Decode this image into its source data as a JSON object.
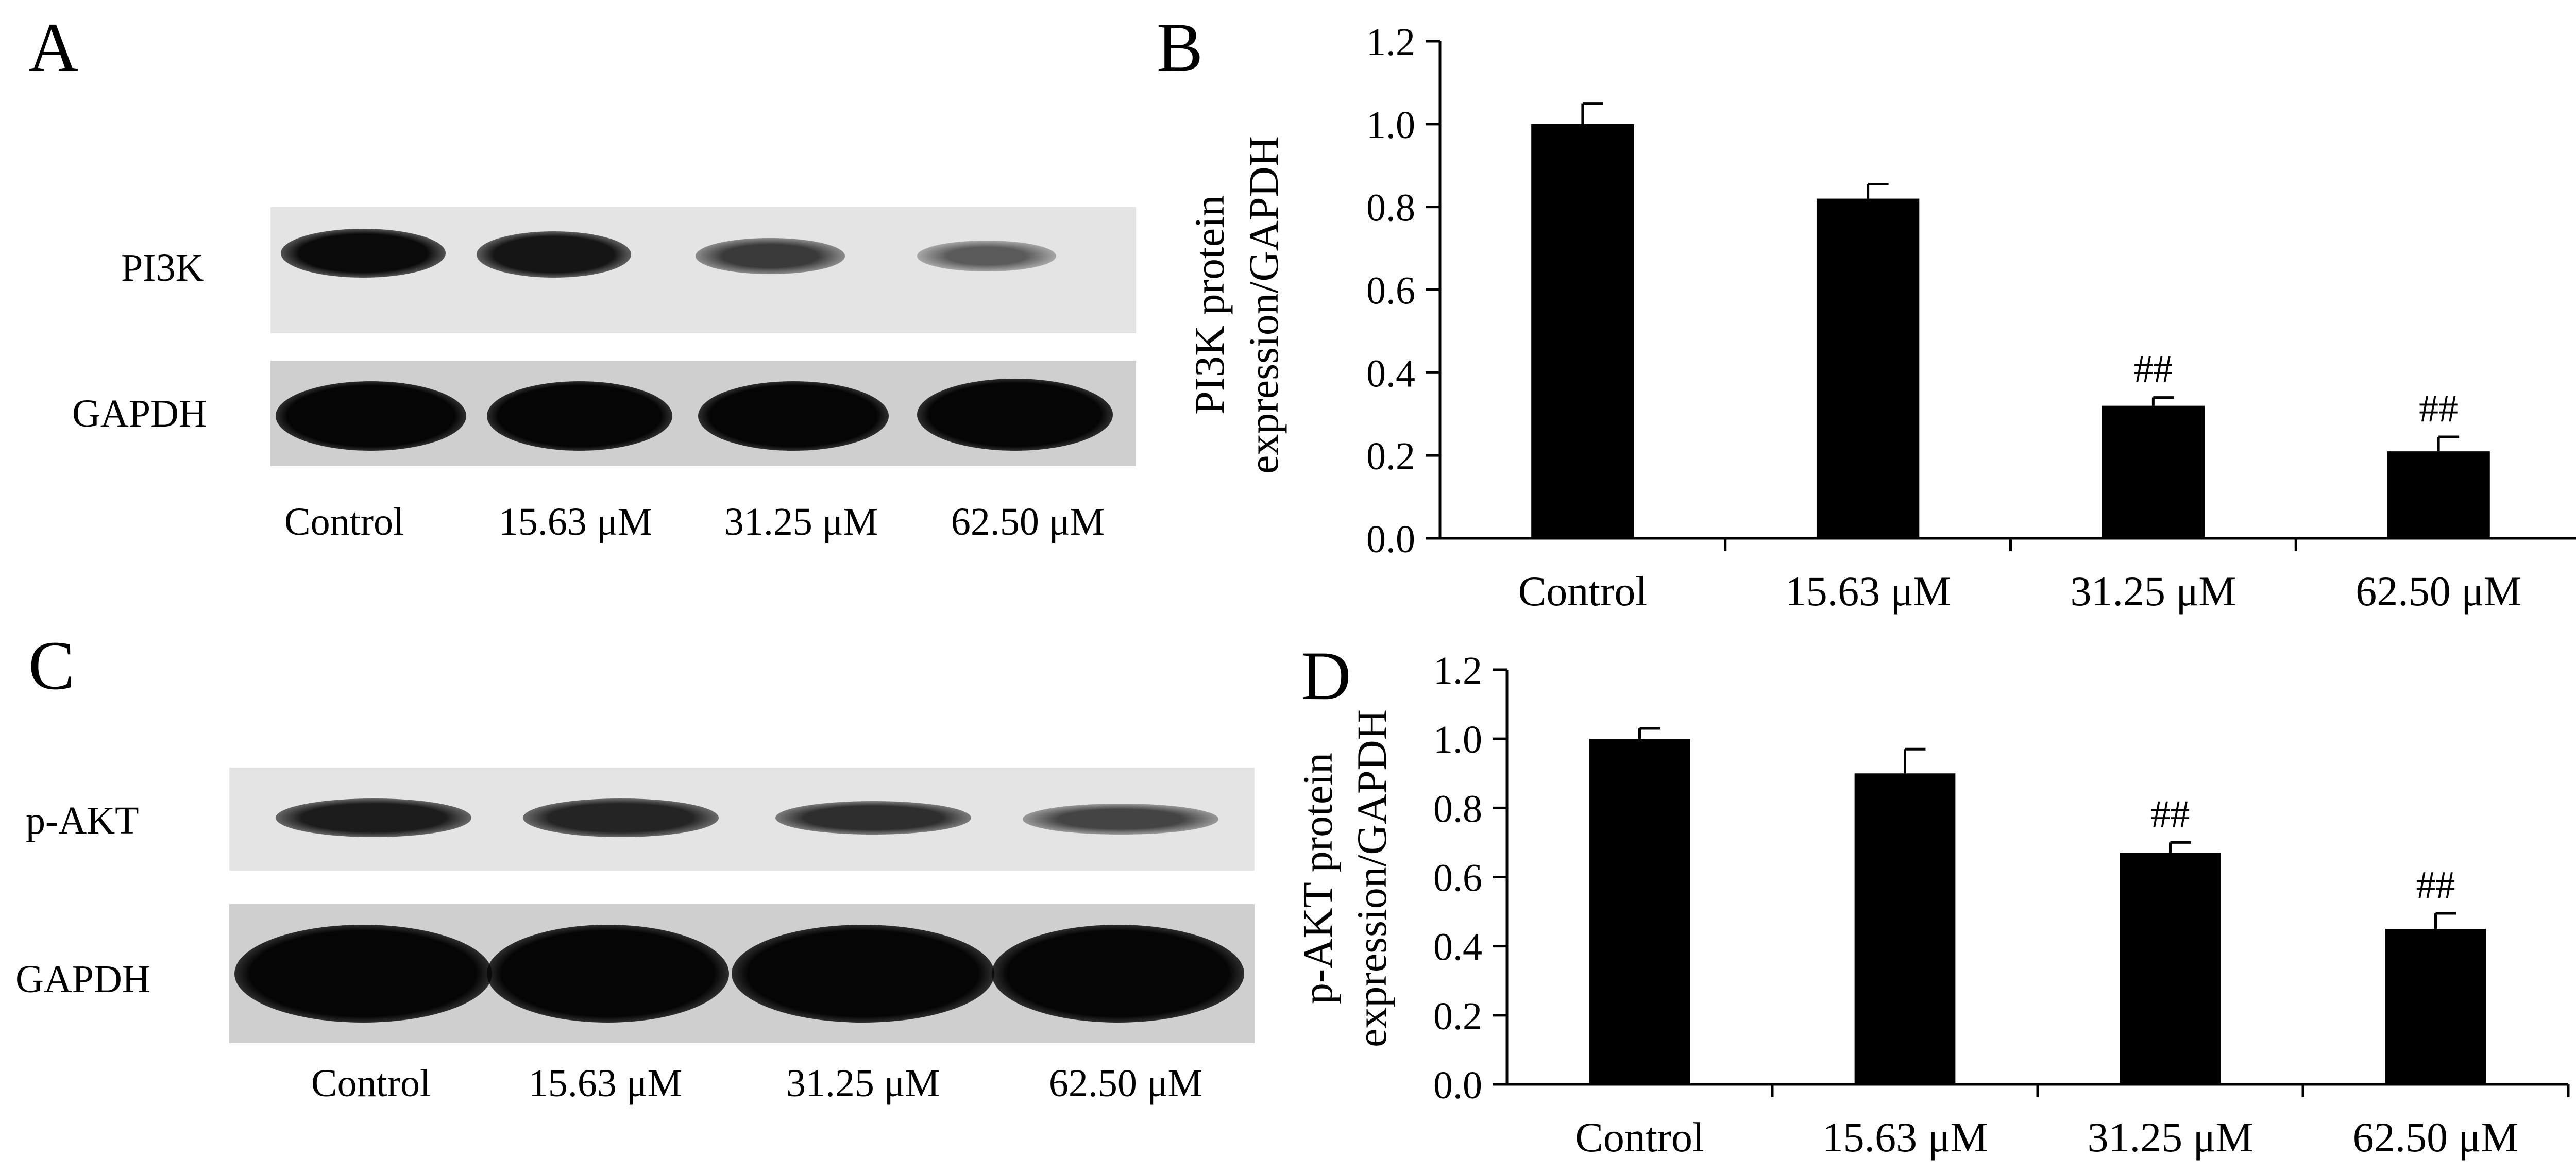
{
  "figure": {
    "panels": {
      "a": "A",
      "b": "B",
      "c": "C",
      "d": "D"
    },
    "blots": [
      {
        "labels": {
          "target": "PI3K",
          "reference": "GAPDH"
        },
        "lanes": [
          "Control",
          "15.63 μM",
          "31.25 μM",
          "62.50 μM"
        ]
      },
      {
        "labels": {
          "target": "p-AKT",
          "reference": "GAPDH"
        },
        "lanes": [
          "Control",
          "15.63 μM",
          "31.25 μM",
          "62.50 μM"
        ]
      }
    ]
  },
  "chart_data": [
    {
      "type": "bar",
      "panel": "B",
      "categories": [
        "Control",
        "15.63 μM",
        "31.25 μM",
        "62.50 μM"
      ],
      "values": [
        1.0,
        0.82,
        0.32,
        0.21
      ],
      "errors": [
        0.05,
        0.035,
        0.02,
        0.035
      ],
      "annotations": [
        "",
        "",
        "##",
        "##"
      ],
      "ylabel_lines": [
        "PI3K protein",
        "expression/GAPDH"
      ],
      "yticks": [
        "0.0",
        "0.2",
        "0.4",
        "0.6",
        "0.8",
        "1.0",
        "1.2"
      ],
      "ylim": [
        0,
        1.2
      ],
      "bar_color": "#000000"
    },
    {
      "type": "bar",
      "panel": "D",
      "categories": [
        "Control",
        "15.63 μM",
        "31.25 μM",
        "62.50 μM"
      ],
      "values": [
        1.0,
        0.9,
        0.67,
        0.45
      ],
      "errors": [
        0.03,
        0.07,
        0.03,
        0.045
      ],
      "annotations": [
        "",
        "",
        "##",
        "##"
      ],
      "ylabel_lines": [
        "p-AKT protein",
        "expression/GAPDH"
      ],
      "yticks": [
        "0.0",
        "0.2",
        "0.4",
        "0.6",
        "0.8",
        "1.0",
        "1.2"
      ],
      "ylim": [
        0,
        1.2
      ],
      "bar_color": "#000000"
    }
  ]
}
